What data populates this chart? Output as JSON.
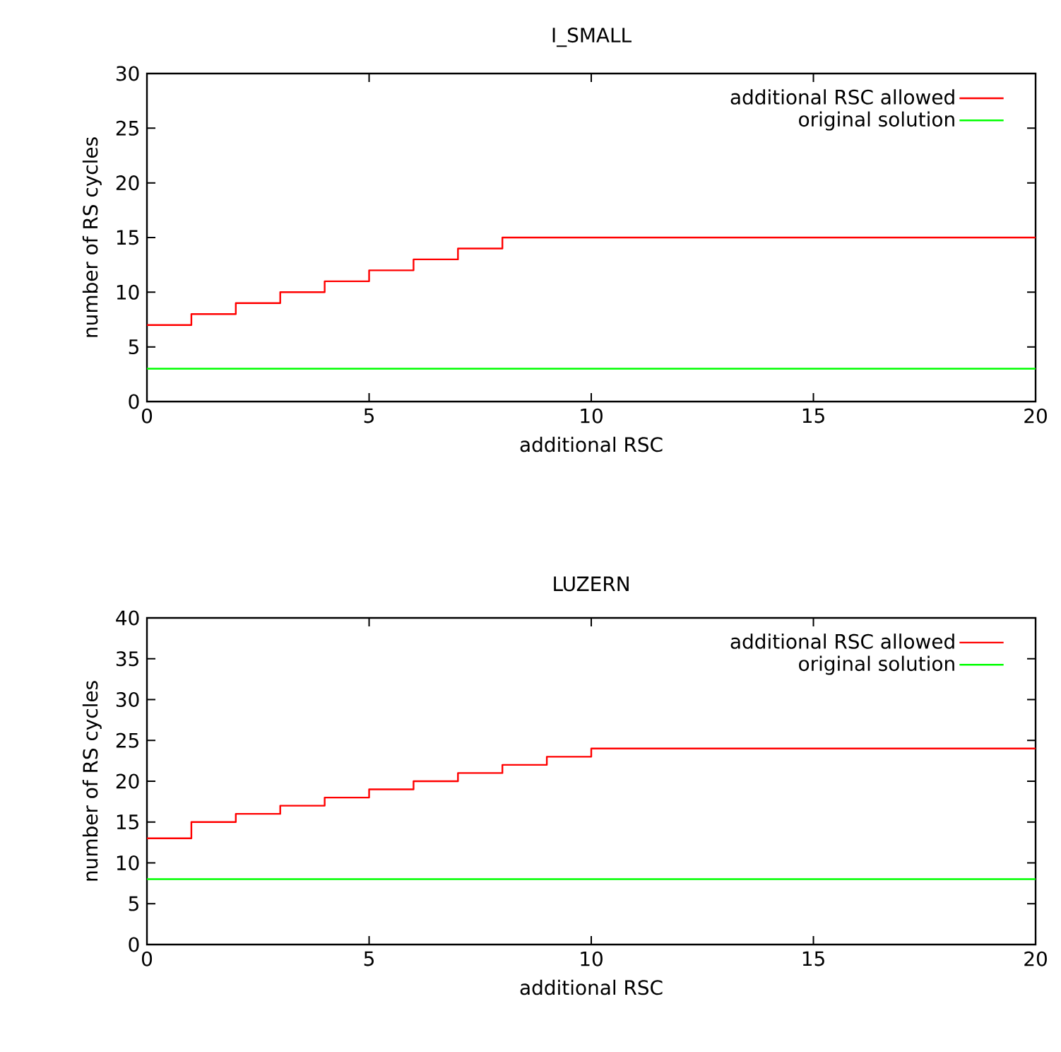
{
  "chart_data": [
    {
      "type": "step",
      "title": "I_SMALL",
      "xlabel": "additional RSC",
      "ylabel": "number of RS cycles",
      "x": [
        0,
        1,
        2,
        3,
        4,
        5,
        6,
        7,
        8,
        9,
        10,
        11,
        12,
        13,
        14,
        15,
        16,
        17,
        18,
        19,
        20
      ],
      "series": [
        {
          "name": "additional RSC allowed",
          "color": "#ff0000",
          "values": [
            7,
            8,
            9,
            10,
            11,
            12,
            13,
            14,
            15,
            15,
            15,
            15,
            15,
            15,
            15,
            15,
            15,
            15,
            15,
            15,
            15
          ]
        },
        {
          "name": "original solution",
          "color": "#00ff00",
          "values": [
            3,
            3,
            3,
            3,
            3,
            3,
            3,
            3,
            3,
            3,
            3,
            3,
            3,
            3,
            3,
            3,
            3,
            3,
            3,
            3,
            3
          ]
        }
      ],
      "xlim": [
        0,
        20
      ],
      "ylim": [
        0,
        30
      ],
      "xticks": [
        0,
        5,
        10,
        15,
        20
      ],
      "yticks": [
        0,
        5,
        10,
        15,
        20,
        25,
        30
      ],
      "legend": "top right",
      "grid": false
    },
    {
      "type": "step",
      "title": "LUZERN",
      "xlabel": "additional RSC",
      "ylabel": "number of RS cycles",
      "x": [
        0,
        1,
        2,
        3,
        4,
        5,
        6,
        7,
        8,
        9,
        10,
        11,
        12,
        13,
        14,
        15,
        16,
        17,
        18,
        19,
        20
      ],
      "series": [
        {
          "name": "additional RSC allowed",
          "color": "#ff0000",
          "values": [
            13,
            15,
            16,
            17,
            18,
            19,
            20,
            21,
            22,
            23,
            24,
            24,
            24,
            24,
            24,
            24,
            24,
            24,
            24,
            24,
            24
          ]
        },
        {
          "name": "original solution",
          "color": "#00ff00",
          "values": [
            8,
            8,
            8,
            8,
            8,
            8,
            8,
            8,
            8,
            8,
            8,
            8,
            8,
            8,
            8,
            8,
            8,
            8,
            8,
            8,
            8
          ]
        }
      ],
      "xlim": [
        0,
        20
      ],
      "ylim": [
        0,
        40
      ],
      "xticks": [
        0,
        5,
        10,
        15,
        20
      ],
      "yticks": [
        0,
        5,
        10,
        15,
        20,
        25,
        30,
        35,
        40
      ],
      "legend": "top right",
      "grid": false
    }
  ]
}
